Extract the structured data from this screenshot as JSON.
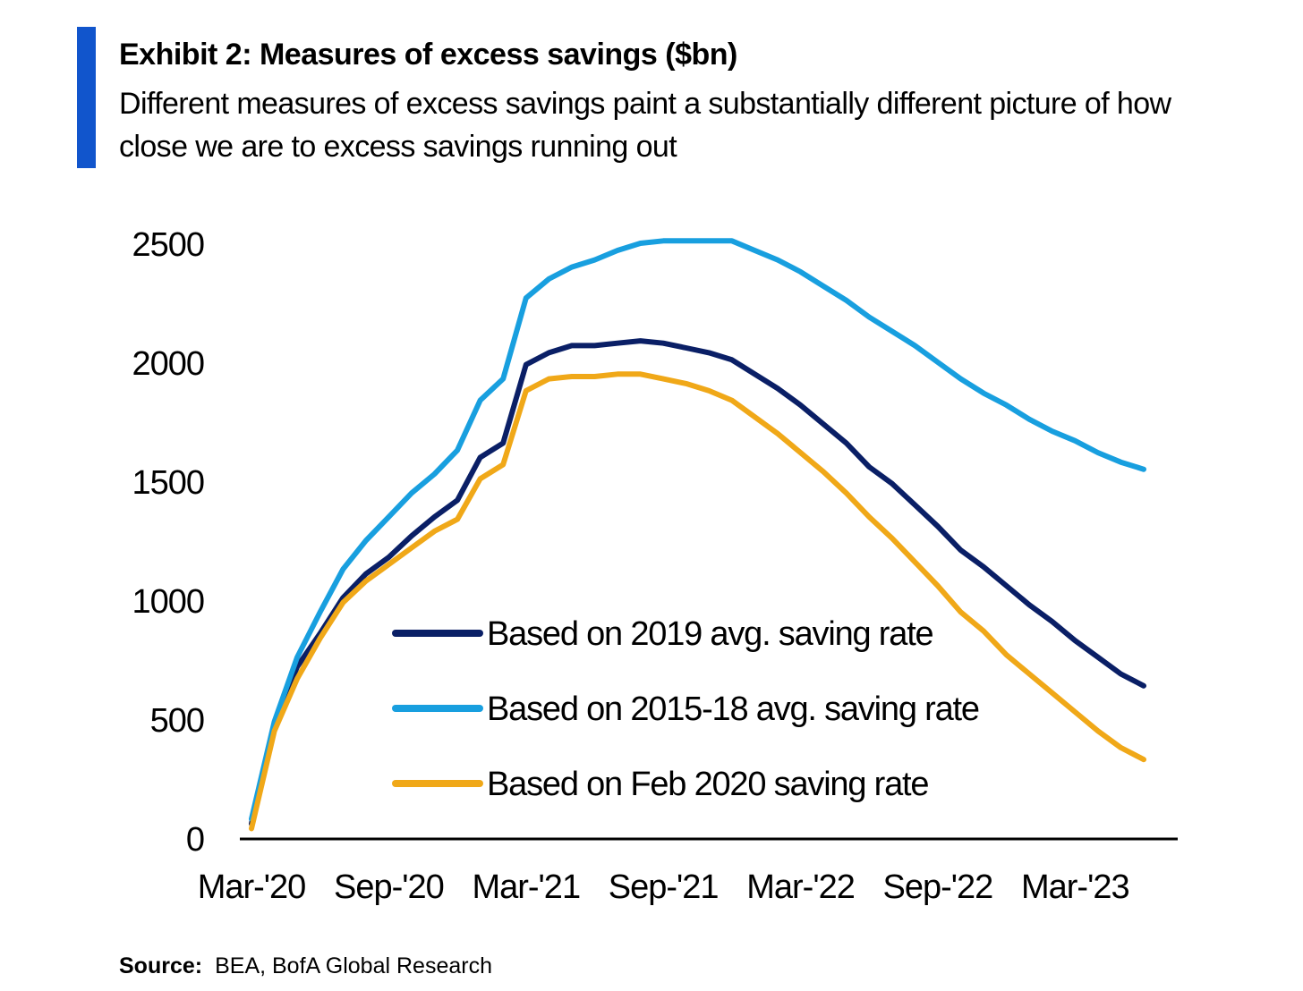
{
  "header": {
    "title": "Exhibit 2: Measures of excess savings ($bn)",
    "subtitle": "Different measures of excess savings paint a substantially different picture of how close we are to excess savings running out",
    "accent_color": "#1155cc"
  },
  "source": {
    "label": "Source:",
    "text": "BEA, BofA Global Research"
  },
  "chart_data": {
    "type": "line",
    "title": "Exhibit 2: Measures of excess savings ($bn)",
    "xlabel": "",
    "ylabel": "",
    "ylim": [
      0,
      2500
    ],
    "yticks": [
      0,
      500,
      1000,
      1500,
      2000,
      2500
    ],
    "x_tick_labels": [
      "Mar-'20",
      "Sep-'20",
      "Mar-'21",
      "Sep-'21",
      "Mar-'22",
      "Sep-'22",
      "Mar-'23"
    ],
    "x": [
      "2020-03",
      "2020-04",
      "2020-05",
      "2020-06",
      "2020-07",
      "2020-08",
      "2020-09",
      "2020-10",
      "2020-11",
      "2020-12",
      "2021-01",
      "2021-02",
      "2021-03",
      "2021-04",
      "2021-05",
      "2021-06",
      "2021-07",
      "2021-08",
      "2021-09",
      "2021-10",
      "2021-11",
      "2021-12",
      "2022-01",
      "2022-02",
      "2022-03",
      "2022-04",
      "2022-05",
      "2022-06",
      "2022-07",
      "2022-08",
      "2022-09",
      "2022-10",
      "2022-11",
      "2022-12",
      "2023-01",
      "2023-02",
      "2023-03",
      "2023-04",
      "2023-05",
      "2023-06"
    ],
    "grid": false,
    "legend_position": "center",
    "series": [
      {
        "name": "Based on  2019 avg. saving rate",
        "color": "#0a1f66",
        "values": [
          60,
          480,
          720,
          860,
          1010,
          1110,
          1180,
          1270,
          1350,
          1420,
          1600,
          1660,
          1990,
          2040,
          2070,
          2070,
          2080,
          2090,
          2080,
          2060,
          2040,
          2010,
          1950,
          1890,
          1820,
          1740,
          1660,
          1560,
          1490,
          1400,
          1310,
          1210,
          1140,
          1060,
          980,
          910,
          830,
          760,
          690,
          640
        ]
      },
      {
        "name": "Based on 2015-18 avg. saving rate",
        "color": "#189fdf",
        "values": [
          80,
          490,
          760,
          950,
          1130,
          1250,
          1350,
          1450,
          1530,
          1630,
          1840,
          1930,
          2270,
          2350,
          2400,
          2430,
          2470,
          2500,
          2510,
          2510,
          2510,
          2510,
          2470,
          2430,
          2380,
          2320,
          2260,
          2190,
          2130,
          2070,
          2000,
          1930,
          1870,
          1820,
          1760,
          1710,
          1670,
          1620,
          1580,
          1550
        ]
      },
      {
        "name": "Based on Feb 2020 saving rate",
        "color": "#f0a818",
        "values": [
          40,
          450,
          670,
          840,
          990,
          1080,
          1150,
          1220,
          1290,
          1340,
          1510,
          1570,
          1880,
          1930,
          1940,
          1940,
          1950,
          1950,
          1930,
          1910,
          1880,
          1840,
          1770,
          1700,
          1620,
          1540,
          1450,
          1350,
          1260,
          1160,
          1060,
          950,
          870,
          770,
          690,
          610,
          530,
          450,
          380,
          330
        ]
      }
    ]
  }
}
